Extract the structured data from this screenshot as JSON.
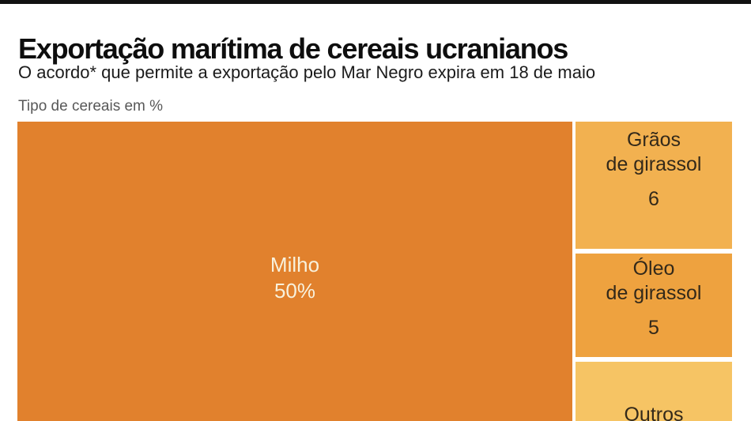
{
  "page": {
    "background_color": "#ffffff",
    "topbar_color": "#121212"
  },
  "header": {
    "title": "Exportação marítima de cereais ucranianos",
    "subtitle": "O acordo* que permite a exportação pelo Mar Negro expira em 18 de maio",
    "unit_label": "Tipo de cereais em %"
  },
  "chart_data": {
    "type": "treemap",
    "title": "Tipo de cereais em %",
    "unit": "% of cereal type",
    "layout_hint": "Large 'Milho' block fills left ~75% of width and is cropped at the bottom edge; remaining tiles stacked in a right column separated by thin white gaps; 'Outros' tile and its value are cut off by the bottom edge of the image",
    "items": [
      {
        "label": "Milho",
        "value": 50,
        "value_display": "50%",
        "color": "#E1812D",
        "text_color": "#F8F1DC"
      },
      {
        "label": "Grãos de girassol",
        "label_line1": "Grãos",
        "label_line2": "de girassol",
        "value": 6,
        "value_display": "6",
        "color": "#F2B150",
        "text_color": "#33291A"
      },
      {
        "label": "Óleo de girassol",
        "label_line1": "Óleo",
        "label_line2": "de girassol",
        "value": 5,
        "value_display": "5",
        "color": "#EEA23F",
        "text_color": "#33291A"
      },
      {
        "label": "Outros",
        "color": "#F6C464",
        "text_color": "#33291A"
      }
    ]
  }
}
